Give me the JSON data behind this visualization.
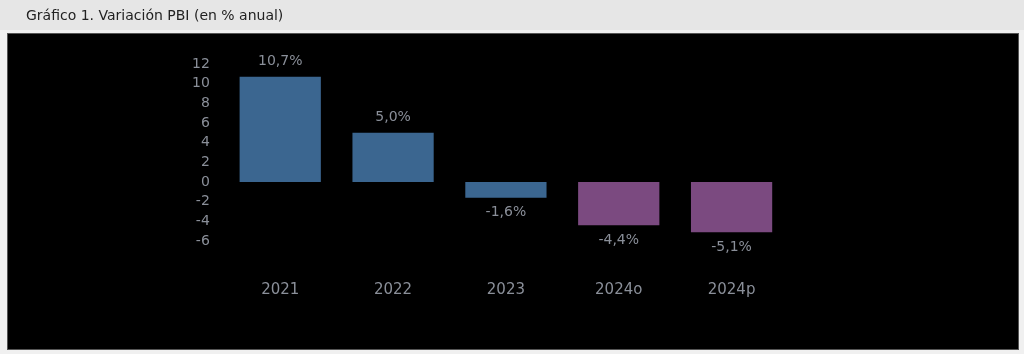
{
  "chart_data": {
    "type": "bar",
    "title": "Gráfico 1. Variación PBI (en % anual)",
    "categories": [
      "2021",
      "2022",
      "2023",
      "2024o",
      "2024p"
    ],
    "values": [
      10.7,
      5.0,
      -1.6,
      -4.4,
      -5.1
    ],
    "colors": [
      "#3b6690",
      "#3b6690",
      "#3b6690",
      "#7b4a80",
      "#7b4a80"
    ],
    "value_labels": [
      "10,7%",
      "5,0%",
      "-1,6%",
      "-4,4%",
      "-5,1%"
    ],
    "ylim": [
      -6,
      12
    ],
    "yticks": [
      -6,
      -4,
      -2,
      0,
      2,
      4,
      6,
      8,
      10,
      12
    ],
    "grid": false,
    "legend": false
  }
}
